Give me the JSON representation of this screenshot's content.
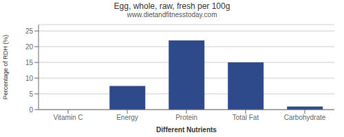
{
  "chart_data": {
    "type": "bar",
    "title": "Egg, whole, raw, fresh per 100g",
    "subtitle": "www.dietandfitnesstoday.com",
    "xlabel": "Different Nutrients",
    "ylabel": "Percentage of RDH (%)",
    "categories": [
      "Vitamin C",
      "Energy",
      "Protein",
      "Total Fat",
      "Carbohydrate"
    ],
    "values": [
      0,
      7.5,
      22,
      15,
      1
    ],
    "color": "#2e4a8a",
    "ylim": [
      0,
      27
    ],
    "yticks": [
      0,
      5,
      10,
      15,
      20,
      25
    ],
    "grid": true
  }
}
